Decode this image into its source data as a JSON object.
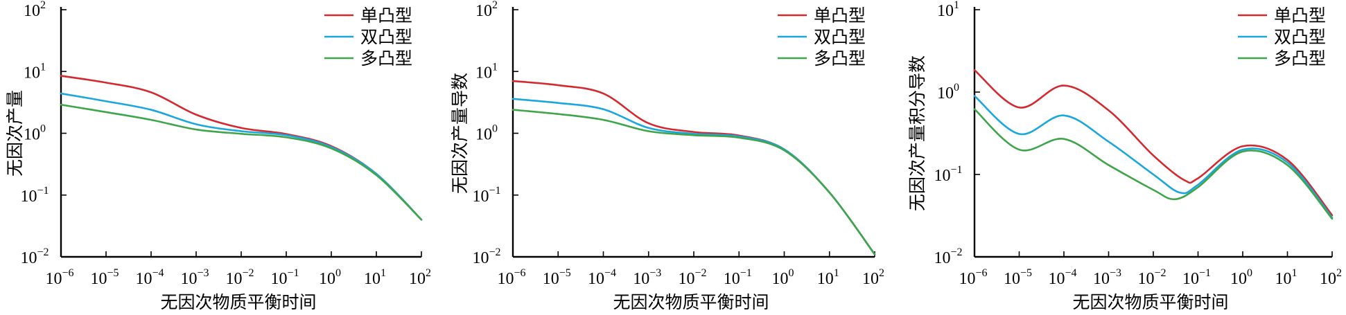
{
  "chart_data": [
    {
      "type": "line",
      "xlabel": "无因次物质平衡时间",
      "ylabel": "无因次产量",
      "x_scale": "log",
      "y_scale": "log",
      "xlim": [
        1e-06,
        100
      ],
      "ylim": [
        0.01,
        100
      ],
      "x_ticks": [
        "10^-6",
        "10^-5",
        "10^-4",
        "10^-3",
        "10^-2",
        "10^-1",
        "10^0",
        "10^1",
        "10^2"
      ],
      "y_ticks": [
        "10^-2",
        "10^-1",
        "10^0",
        "10^1",
        "10^2"
      ],
      "legend": "top-right",
      "grid": false,
      "series": [
        {
          "name": "单凸型",
          "color": "#d42a2f",
          "x": [
            1e-06,
            1e-05,
            0.0001,
            0.001,
            0.01,
            0.1,
            1,
            10,
            100
          ],
          "y": [
            8.5,
            6.6,
            4.6,
            2.0,
            1.22,
            0.97,
            0.62,
            0.22,
            0.04
          ]
        },
        {
          "name": "双凸型",
          "color": "#1aa6de",
          "x": [
            1e-06,
            1e-05,
            0.0001,
            0.001,
            0.01,
            0.1,
            1,
            10,
            100
          ],
          "y": [
            4.4,
            3.3,
            2.4,
            1.4,
            1.08,
            0.93,
            0.6,
            0.22,
            0.04
          ]
        },
        {
          "name": "多凸型",
          "color": "#3ea54a",
          "x": [
            1e-06,
            1e-05,
            0.0001,
            0.001,
            0.01,
            0.1,
            1,
            10,
            100
          ],
          "y": [
            2.9,
            2.2,
            1.65,
            1.15,
            0.98,
            0.86,
            0.57,
            0.21,
            0.04
          ]
        }
      ]
    },
    {
      "type": "line",
      "xlabel": "无因次物质平衡时间",
      "ylabel": "无因次产量导数",
      "x_scale": "log",
      "y_scale": "log",
      "xlim": [
        1e-06,
        100
      ],
      "ylim": [
        0.01,
        100
      ],
      "x_ticks": [
        "10^-6",
        "10^-5",
        "10^-4",
        "10^-3",
        "10^-2",
        "10^-1",
        "10^0",
        "10^1",
        "10^2"
      ],
      "y_ticks": [
        "10^-2",
        "10^-1",
        "10^0",
        "10^1",
        "10^2"
      ],
      "legend": "top-right",
      "grid": false,
      "series": [
        {
          "name": "单凸型",
          "color": "#d42a2f",
          "x": [
            1e-06,
            1e-05,
            0.0001,
            0.001,
            0.01,
            0.1,
            1,
            10,
            100
          ],
          "y": [
            7.0,
            6.0,
            4.4,
            1.45,
            1.05,
            0.92,
            0.55,
            0.11,
            0.011
          ]
        },
        {
          "name": "双凸型",
          "color": "#1aa6de",
          "x": [
            1e-06,
            1e-05,
            0.0001,
            0.001,
            0.01,
            0.1,
            1,
            10,
            100
          ],
          "y": [
            3.6,
            3.1,
            2.45,
            1.22,
            0.98,
            0.89,
            0.55,
            0.11,
            0.011
          ]
        },
        {
          "name": "多凸型",
          "color": "#3ea54a",
          "x": [
            1e-06,
            1e-05,
            0.0001,
            0.001,
            0.01,
            0.1,
            1,
            10,
            100
          ],
          "y": [
            2.4,
            2.05,
            1.65,
            1.08,
            0.93,
            0.85,
            0.53,
            0.11,
            0.011
          ]
        }
      ]
    },
    {
      "type": "line",
      "xlabel": "无因次物质平衡时间",
      "ylabel": "无因次产量积分导数",
      "x_scale": "log",
      "y_scale": "log",
      "xlim": [
        1e-06,
        100
      ],
      "ylim": [
        0.01,
        10
      ],
      "x_ticks": [
        "10^-6",
        "10^-5",
        "10^-4",
        "10^-3",
        "10^-2",
        "10^-1",
        "10^0",
        "10^1",
        "10^2"
      ],
      "y_ticks": [
        "10^-2",
        "10^-1",
        "10^0",
        "10^1"
      ],
      "legend": "top-right",
      "grid": false,
      "series": [
        {
          "name": "单凸型",
          "color": "#d42a2f",
          "x": [
            1e-06,
            1e-05,
            0.0001,
            0.001,
            0.01,
            0.05,
            0.1,
            1,
            10,
            100
          ],
          "y": [
            1.85,
            0.65,
            1.2,
            0.6,
            0.17,
            0.085,
            0.09,
            0.22,
            0.15,
            0.032
          ]
        },
        {
          "name": "双凸型",
          "color": "#1aa6de",
          "x": [
            1e-06,
            1e-05,
            0.0001,
            0.001,
            0.01,
            0.04,
            0.1,
            1,
            10,
            100
          ],
          "y": [
            0.9,
            0.31,
            0.52,
            0.25,
            0.1,
            0.06,
            0.075,
            0.2,
            0.14,
            0.03
          ]
        },
        {
          "name": "多凸型",
          "color": "#3ea54a",
          "x": [
            1e-06,
            1e-05,
            0.0001,
            0.001,
            0.01,
            0.03,
            0.1,
            1,
            10,
            100
          ],
          "y": [
            0.62,
            0.2,
            0.27,
            0.13,
            0.065,
            0.05,
            0.07,
            0.19,
            0.13,
            0.029
          ]
        }
      ]
    }
  ]
}
